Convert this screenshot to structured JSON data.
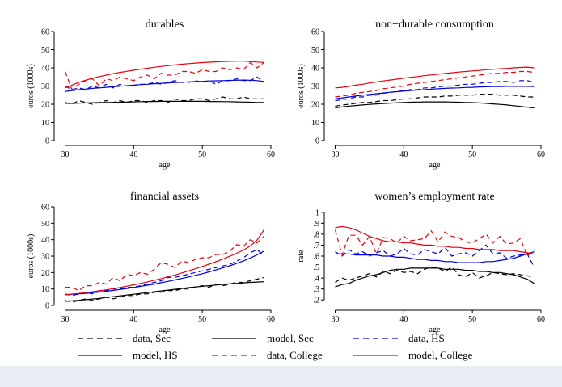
{
  "chart_data": [
    {
      "type": "line",
      "title": "durables",
      "xlabel": "age",
      "ylabel": "euros (1000s)",
      "xlim": [
        29,
        60
      ],
      "ylim": [
        0,
        60
      ],
      "xticks": [
        30,
        40,
        50,
        60
      ],
      "yticks": [
        0,
        10,
        20,
        30,
        40,
        50,
        60
      ],
      "x": [
        30,
        31,
        32,
        33,
        34,
        35,
        36,
        37,
        38,
        39,
        40,
        41,
        42,
        43,
        44,
        45,
        46,
        47,
        48,
        49,
        50,
        51,
        52,
        53,
        54,
        55,
        56,
        57,
        58,
        59
      ],
      "series": [
        {
          "name": "data, Sec",
          "values": [
            21,
            20,
            22,
            21,
            20,
            21,
            22,
            21,
            22,
            21,
            22,
            22,
            21,
            22,
            22,
            21,
            23,
            22,
            22,
            23,
            23,
            22,
            23,
            24,
            23,
            23,
            24,
            23,
            23,
            23
          ]
        },
        {
          "name": "model, Sec",
          "values": [
            20.5,
            20.5,
            20.6,
            20.7,
            20.8,
            20.9,
            21,
            21,
            21.1,
            21.2,
            21.3,
            21.4,
            21.5,
            21.5,
            21.6,
            21.6,
            21.6,
            21.6,
            21.6,
            21.6,
            21.6,
            21.5,
            21.5,
            21.4,
            21.4,
            21.3,
            21.2,
            21.1,
            21,
            21
          ]
        },
        {
          "name": "data, HS",
          "values": [
            30,
            28,
            29,
            28,
            30,
            29,
            31,
            29,
            31,
            30,
            30,
            31,
            31,
            32,
            31,
            32,
            33,
            32,
            32,
            33,
            32,
            33,
            31,
            33,
            33,
            34,
            33,
            33,
            35,
            32
          ]
        },
        {
          "name": "model, HS",
          "values": [
            27,
            27.5,
            28,
            28.3,
            28.7,
            29,
            29.3,
            29.6,
            29.9,
            30.2,
            30.5,
            30.8,
            31,
            31.3,
            31.5,
            31.7,
            31.9,
            32.1,
            32.3,
            32.5,
            32.6,
            32.8,
            32.9,
            33,
            33.1,
            33.2,
            33.3,
            33.2,
            33,
            32.5
          ]
        },
        {
          "name": "data, College",
          "values": [
            38,
            28,
            31,
            33,
            34,
            30,
            34,
            33,
            35,
            34,
            33,
            35,
            36,
            34,
            37,
            36,
            36,
            38,
            38,
            37,
            39,
            38,
            38,
            40,
            39,
            40,
            39,
            43,
            40,
            43
          ]
        },
        {
          "name": "model, College",
          "values": [
            29,
            30.5,
            32,
            33.2,
            34.3,
            35.2,
            36,
            36.8,
            37.5,
            38.1,
            38.7,
            39.3,
            39.8,
            40.3,
            40.8,
            41.2,
            41.6,
            42,
            42.3,
            42.6,
            42.9,
            43.1,
            43.3,
            43.5,
            43.6,
            43.7,
            43.7,
            43.5,
            43.2,
            43
          ]
        }
      ]
    },
    {
      "type": "line",
      "title": "non−durable consumption",
      "xlabel": "age",
      "ylabel": "euros (1000s)",
      "xlim": [
        29,
        60
      ],
      "ylim": [
        0,
        60
      ],
      "xticks": [
        30,
        40,
        50,
        60
      ],
      "yticks": [
        0,
        10,
        20,
        30,
        40,
        50,
        60
      ],
      "x": [
        30,
        31,
        32,
        33,
        34,
        35,
        36,
        37,
        38,
        39,
        40,
        41,
        42,
        43,
        44,
        45,
        46,
        47,
        48,
        49,
        50,
        51,
        52,
        53,
        54,
        55,
        56,
        57,
        58,
        59
      ],
      "series": [
        {
          "name": "data, Sec",
          "values": [
            19,
            19.5,
            20,
            20.5,
            21,
            21,
            21.5,
            22,
            22,
            22.5,
            23,
            23,
            23.5,
            24,
            24,
            24,
            24.5,
            24.5,
            25,
            25,
            25,
            25.5,
            25.5,
            25.5,
            25,
            25,
            25,
            24.5,
            24,
            24
          ]
        },
        {
          "name": "model, Sec",
          "values": [
            18,
            18.5,
            19,
            19.3,
            19.6,
            19.9,
            20.2,
            20.4,
            20.6,
            20.8,
            21,
            21.1,
            21.2,
            21.3,
            21.3,
            21.3,
            21.3,
            21.2,
            21.1,
            21,
            20.9,
            20.7,
            20.5,
            20.2,
            19.9,
            19.6,
            19.2,
            18.8,
            18.4,
            18
          ]
        },
        {
          "name": "data, HS",
          "values": [
            22,
            22.5,
            23,
            24,
            24,
            25,
            25,
            26,
            26.5,
            27,
            27.5,
            28,
            28,
            29,
            29,
            29.5,
            30,
            30,
            30.5,
            31,
            31,
            31.5,
            32,
            32,
            32.5,
            32.5,
            32,
            33,
            33,
            32
          ]
        },
        {
          "name": "model, HS",
          "values": [
            23,
            23.5,
            24,
            24.5,
            25,
            25.4,
            25.8,
            26.2,
            26.6,
            26.9,
            27.2,
            27.5,
            27.8,
            28,
            28.3,
            28.5,
            28.7,
            28.9,
            29,
            29.2,
            29.3,
            29.5,
            29.6,
            29.7,
            29.7,
            29.8,
            29.8,
            29.8,
            29.8,
            29.7
          ]
        },
        {
          "name": "data, College",
          "values": [
            24,
            24.5,
            25,
            26,
            26.5,
            27,
            27.5,
            28.5,
            29,
            29.5,
            30,
            31,
            31.5,
            32,
            32.5,
            33,
            33.5,
            34,
            34.5,
            35,
            35.5,
            36,
            36.5,
            37,
            37,
            37.5,
            37.5,
            38,
            38,
            37.5
          ]
        },
        {
          "name": "model, College",
          "values": [
            29,
            29.3,
            29.8,
            30.5,
            31,
            31.7,
            32.2,
            32.8,
            33.3,
            33.8,
            34.3,
            34.8,
            35.2,
            35.7,
            36.1,
            36.5,
            36.9,
            37.3,
            37.7,
            38,
            38.3,
            38.6,
            39,
            39.2,
            39.5,
            39.7,
            40,
            40.2,
            40.4,
            40
          ]
        }
      ]
    },
    {
      "type": "line",
      "title": "financial assets",
      "xlabel": "age",
      "ylabel": "euros (1000s)",
      "xlim": [
        29,
        60
      ],
      "ylim": [
        0,
        60
      ],
      "xticks": [
        30,
        40,
        50,
        60
      ],
      "yticks": [
        0,
        10,
        20,
        30,
        40,
        50,
        60
      ],
      "x": [
        30,
        31,
        32,
        33,
        34,
        35,
        36,
        37,
        38,
        39,
        40,
        41,
        42,
        43,
        44,
        45,
        46,
        47,
        48,
        49,
        50,
        51,
        52,
        53,
        54,
        55,
        56,
        57,
        58,
        59
      ],
      "series": [
        {
          "name": "data, Sec",
          "values": [
            3,
            2,
            3,
            4,
            3,
            4,
            5,
            4,
            5,
            6,
            6,
            7,
            7,
            8,
            8,
            9,
            9,
            10,
            10,
            11,
            12,
            11,
            13,
            12,
            13,
            14,
            14,
            15,
            16,
            17
          ]
        },
        {
          "name": "model, Sec",
          "values": [
            2.5,
            2.8,
            3.1,
            3.5,
            3.9,
            4.3,
            4.8,
            5.3,
            5.8,
            6.3,
            6.8,
            7.3,
            7.8,
            8.3,
            8.8,
            9.3,
            9.8,
            10.3,
            10.8,
            11.2,
            11.6,
            12,
            12.4,
            12.8,
            13.1,
            13.4,
            13.7,
            14,
            14.2,
            14.4
          ]
        },
        {
          "name": "data, HS",
          "values": [
            7,
            6,
            7,
            8,
            7,
            9,
            9,
            10,
            10,
            11,
            11,
            12,
            13,
            14,
            15,
            17,
            17,
            18,
            19,
            20,
            21,
            22,
            23,
            24,
            25,
            27,
            29,
            32,
            34,
            30
          ]
        },
        {
          "name": "model, HS",
          "values": [
            6.5,
            6.8,
            7,
            7.3,
            7.7,
            8.1,
            8.6,
            9.1,
            9.7,
            10.3,
            10.9,
            11.6,
            12.3,
            13,
            13.8,
            14.6,
            15.5,
            16.4,
            17.3,
            18.3,
            19.3,
            20.4,
            21.6,
            22.8,
            24.1,
            25.5,
            27.1,
            28.8,
            30.8,
            33
          ]
        },
        {
          "name": "data, College",
          "values": [
            11,
            11,
            9,
            12,
            12,
            14,
            13,
            17,
            15,
            19,
            18,
            20,
            19,
            22,
            26,
            25,
            23,
            27,
            26,
            28,
            29,
            29,
            31,
            31,
            33,
            37,
            36,
            40,
            38,
            42
          ]
        },
        {
          "name": "model, College",
          "values": [
            6.5,
            6.9,
            7.3,
            7.8,
            8.3,
            8.9,
            9.5,
            10.2,
            10.9,
            11.7,
            12.5,
            13.4,
            14.3,
            15.3,
            16.3,
            17.4,
            18.5,
            19.7,
            21,
            22.3,
            23.7,
            25.1,
            26.6,
            28.2,
            29.9,
            31.7,
            33.7,
            36.2,
            39.8,
            46
          ]
        }
      ]
    },
    {
      "type": "line",
      "title": "women’s employment rate",
      "xlabel": "age",
      "ylabel": "rate",
      "xlim": [
        29,
        60
      ],
      "ylim": [
        0.15,
        1.05
      ],
      "xticks": [
        30,
        40,
        50,
        60
      ],
      "yticks": [
        0.2,
        0.3,
        0.4,
        0.5,
        0.6,
        0.7,
        0.8,
        0.9,
        1
      ],
      "ytick_labels": [
        ".2",
        ".3",
        ".4",
        ".5",
        ".6",
        ".7",
        ".8",
        ".9",
        "1"
      ],
      "x": [
        30,
        31,
        32,
        33,
        34,
        35,
        36,
        37,
        38,
        39,
        40,
        41,
        42,
        43,
        44,
        45,
        46,
        47,
        48,
        49,
        50,
        51,
        52,
        53,
        54,
        55,
        56,
        57,
        58,
        59
      ],
      "series": [
        {
          "name": "data, Sec",
          "values": [
            0.36,
            0.4,
            0.38,
            0.4,
            0.42,
            0.44,
            0.41,
            0.46,
            0.44,
            0.47,
            0.45,
            0.46,
            0.44,
            0.48,
            0.5,
            0.49,
            0.46,
            0.5,
            0.43,
            0.41,
            0.45,
            0.4,
            0.42,
            0.45,
            0.44,
            0.43,
            0.44,
            0.43,
            0.42,
            0.41
          ]
        },
        {
          "name": "model, Sec",
          "values": [
            0.32,
            0.34,
            0.35,
            0.38,
            0.4,
            0.42,
            0.43,
            0.45,
            0.47,
            0.48,
            0.48,
            0.49,
            0.49,
            0.49,
            0.49,
            0.49,
            0.48,
            0.48,
            0.48,
            0.47,
            0.47,
            0.46,
            0.46,
            0.45,
            0.45,
            0.44,
            0.43,
            0.41,
            0.39,
            0.35
          ]
        },
        {
          "name": "data, HS",
          "values": [
            0.64,
            0.6,
            0.66,
            0.62,
            0.64,
            0.6,
            0.63,
            0.65,
            0.6,
            0.62,
            0.67,
            0.62,
            0.61,
            0.66,
            0.64,
            0.62,
            0.68,
            0.6,
            0.62,
            0.63,
            0.6,
            0.65,
            0.7,
            0.62,
            0.63,
            0.58,
            0.6,
            0.61,
            0.62,
            0.5
          ]
        },
        {
          "name": "model, HS",
          "values": [
            0.62,
            0.62,
            0.62,
            0.61,
            0.61,
            0.61,
            0.61,
            0.6,
            0.6,
            0.59,
            0.59,
            0.58,
            0.57,
            0.57,
            0.56,
            0.56,
            0.55,
            0.55,
            0.54,
            0.54,
            0.54,
            0.54,
            0.55,
            0.55,
            0.56,
            0.57,
            0.58,
            0.6,
            0.62,
            0.64
          ]
        },
        {
          "name": "data, College",
          "values": [
            0.84,
            0.61,
            0.79,
            0.79,
            0.7,
            0.78,
            0.62,
            0.77,
            0.76,
            0.72,
            0.78,
            0.74,
            0.75,
            0.76,
            0.83,
            0.73,
            0.82,
            0.78,
            0.77,
            0.73,
            0.72,
            0.76,
            0.8,
            0.72,
            0.78,
            0.71,
            0.72,
            0.76,
            0.6,
            0.66
          ]
        },
        {
          "name": "model, College",
          "values": [
            0.86,
            0.87,
            0.86,
            0.84,
            0.81,
            0.78,
            0.76,
            0.74,
            0.73,
            0.73,
            0.72,
            0.72,
            0.71,
            0.7,
            0.7,
            0.69,
            0.69,
            0.68,
            0.68,
            0.67,
            0.67,
            0.66,
            0.66,
            0.66,
            0.65,
            0.65,
            0.65,
            0.64,
            0.63,
            0.62
          ]
        }
      ]
    }
  ],
  "legend": [
    {
      "label": "data, Sec",
      "color": "#000000",
      "dash": true
    },
    {
      "label": "model, Sec",
      "color": "#000000",
      "dash": false
    },
    {
      "label": "data, HS",
      "color": "#0000dd",
      "dash": true
    },
    {
      "label": "model, HS",
      "color": "#0000dd",
      "dash": false
    },
    {
      "label": "data, College",
      "color": "#e8000b",
      "dash": true
    },
    {
      "label": "model, College",
      "color": "#e8000b",
      "dash": false
    }
  ]
}
